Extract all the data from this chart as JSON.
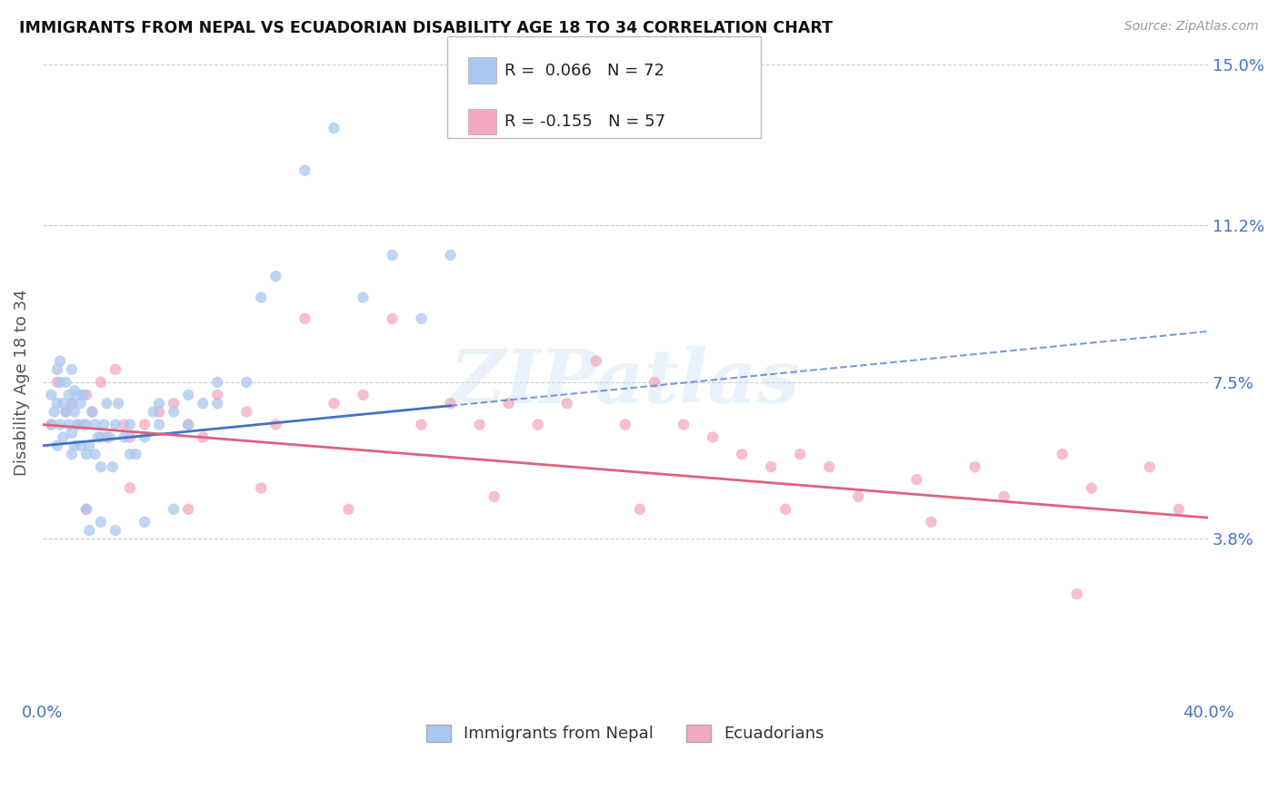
{
  "title": "IMMIGRANTS FROM NEPAL VS ECUADORIAN DISABILITY AGE 18 TO 34 CORRELATION CHART",
  "source_text": "Source: ZipAtlas.com",
  "ylabel": "Disability Age 18 to 34",
  "xlim": [
    0.0,
    40.0
  ],
  "ylim": [
    0.0,
    15.0
  ],
  "x_tick_labels": [
    "0.0%",
    "40.0%"
  ],
  "y_ticks": [
    3.8,
    7.5,
    11.2,
    15.0
  ],
  "y_tick_labels": [
    "3.8%",
    "7.5%",
    "11.2%",
    "15.0%"
  ],
  "nepal_color": "#A8C8F0",
  "ecuador_color": "#F4A8C0",
  "nepal_line_color": "#4472C4",
  "ecuador_line_color": "#E06080",
  "nepal_R": 0.066,
  "nepal_N": 72,
  "ecuador_R": -0.155,
  "ecuador_N": 57,
  "legend_label_nepal": "Immigrants from Nepal",
  "legend_label_ecuador": "Ecuadorians",
  "watermark": "ZIPatlas",
  "background_color": "#FFFFFF",
  "grid_color": "#CCCCCC",
  "nepal_line_x0": 0.0,
  "nepal_line_y0": 6.0,
  "nepal_line_x1": 40.0,
  "nepal_line_y1": 8.7,
  "nepal_solid_x1": 14.0,
  "ecuador_line_x0": 0.0,
  "ecuador_line_y0": 6.5,
  "ecuador_line_x1": 40.0,
  "ecuador_line_y1": 4.3,
  "nepal_scatter_x": [
    0.3,
    0.3,
    0.4,
    0.5,
    0.5,
    0.5,
    0.6,
    0.6,
    0.6,
    0.7,
    0.7,
    0.8,
    0.8,
    0.9,
    0.9,
    1.0,
    1.0,
    1.0,
    1.0,
    1.1,
    1.1,
    1.1,
    1.2,
    1.2,
    1.3,
    1.3,
    1.4,
    1.4,
    1.5,
    1.5,
    1.6,
    1.7,
    1.8,
    1.8,
    1.9,
    2.0,
    2.0,
    2.1,
    2.2,
    2.3,
    2.4,
    2.5,
    2.6,
    2.8,
    3.0,
    3.0,
    3.2,
    3.5,
    3.8,
    4.0,
    4.0,
    4.5,
    5.0,
    5.0,
    5.5,
    6.0,
    6.0,
    7.0,
    7.5,
    8.0,
    9.0,
    10.0,
    11.0,
    12.0,
    13.0,
    14.0,
    1.5,
    1.6,
    2.0,
    2.5,
    3.5,
    4.5
  ],
  "nepal_scatter_y": [
    6.5,
    7.2,
    6.8,
    6.0,
    7.0,
    7.8,
    6.5,
    7.5,
    8.0,
    6.2,
    7.0,
    6.8,
    7.5,
    6.5,
    7.2,
    5.8,
    6.3,
    7.0,
    7.8,
    6.0,
    6.8,
    7.3,
    6.5,
    7.2,
    6.0,
    7.0,
    6.5,
    7.2,
    5.8,
    6.5,
    6.0,
    6.8,
    5.8,
    6.5,
    6.2,
    5.5,
    6.2,
    6.5,
    7.0,
    6.2,
    5.5,
    6.5,
    7.0,
    6.2,
    5.8,
    6.5,
    5.8,
    6.2,
    6.8,
    6.5,
    7.0,
    6.8,
    6.5,
    7.2,
    7.0,
    7.0,
    7.5,
    7.5,
    9.5,
    10.0,
    12.5,
    13.5,
    9.5,
    10.5,
    9.0,
    10.5,
    4.5,
    4.0,
    4.2,
    4.0,
    4.2,
    4.5
  ],
  "ecuador_scatter_x": [
    0.3,
    0.5,
    0.8,
    1.0,
    1.2,
    1.5,
    1.7,
    2.0,
    2.2,
    2.5,
    2.8,
    3.0,
    3.5,
    4.0,
    4.5,
    5.0,
    5.5,
    6.0,
    7.0,
    8.0,
    9.0,
    10.0,
    11.0,
    12.0,
    13.0,
    14.0,
    15.0,
    16.0,
    17.0,
    18.0,
    19.0,
    20.0,
    21.0,
    22.0,
    23.0,
    24.0,
    25.0,
    26.0,
    27.0,
    28.0,
    30.0,
    32.0,
    33.0,
    35.0,
    36.0,
    38.0,
    39.0,
    1.5,
    3.0,
    5.0,
    7.5,
    10.5,
    15.5,
    20.5,
    25.5,
    30.5,
    35.5
  ],
  "ecuador_scatter_y": [
    6.5,
    7.5,
    6.8,
    7.0,
    6.5,
    7.2,
    6.8,
    7.5,
    6.2,
    7.8,
    6.5,
    6.2,
    6.5,
    6.8,
    7.0,
    6.5,
    6.2,
    7.2,
    6.8,
    6.5,
    9.0,
    7.0,
    7.2,
    9.0,
    6.5,
    7.0,
    6.5,
    7.0,
    6.5,
    7.0,
    8.0,
    6.5,
    7.5,
    6.5,
    6.2,
    5.8,
    5.5,
    5.8,
    5.5,
    4.8,
    5.2,
    5.5,
    4.8,
    5.8,
    5.0,
    5.5,
    4.5,
    4.5,
    5.0,
    4.5,
    5.0,
    4.5,
    4.8,
    4.5,
    4.5,
    4.2,
    2.5
  ]
}
